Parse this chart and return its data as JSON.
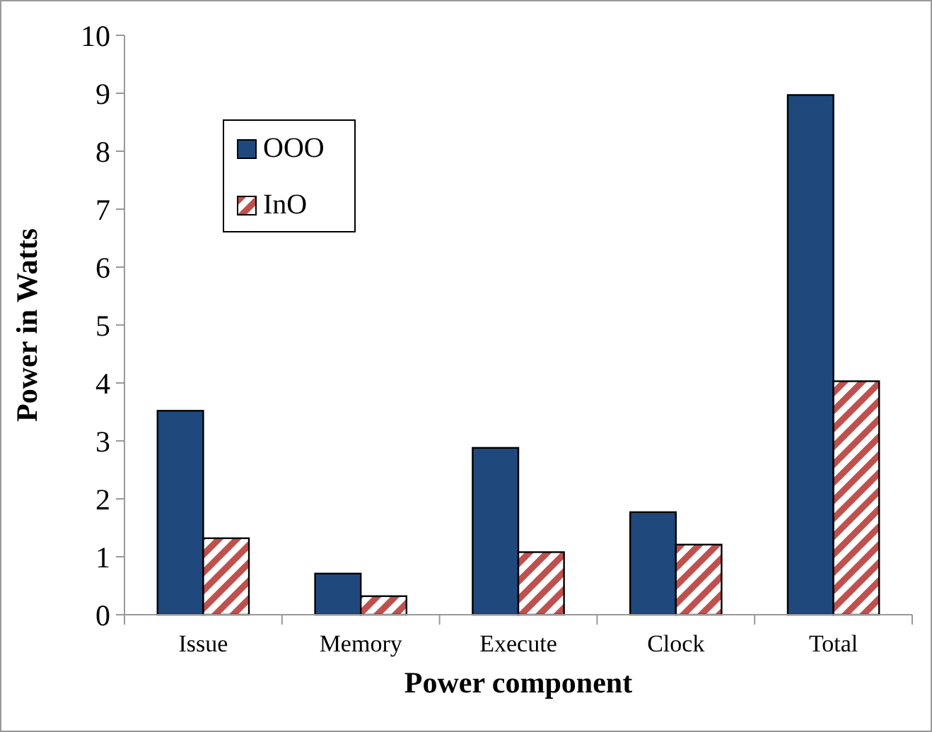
{
  "chart_data": {
    "type": "bar",
    "xlabel": "Power component",
    "ylabel": "Power in Watts",
    "categories": [
      "Issue",
      "Memory",
      "Execute",
      "Clock",
      "Total"
    ],
    "series": [
      {
        "name": "OOO",
        "color": "#1f497d",
        "values": [
          3.52,
          0.71,
          2.88,
          1.77,
          8.97
        ]
      },
      {
        "name": "InO",
        "color": "#c0504d",
        "values": [
          1.32,
          0.32,
          1.08,
          1.21,
          4.03
        ]
      }
    ],
    "ylim": [
      0,
      10
    ],
    "yticks": [
      0,
      1,
      2,
      3,
      4,
      5,
      6,
      7,
      8,
      9,
      10
    ],
    "grid": false,
    "legend": "top left"
  }
}
